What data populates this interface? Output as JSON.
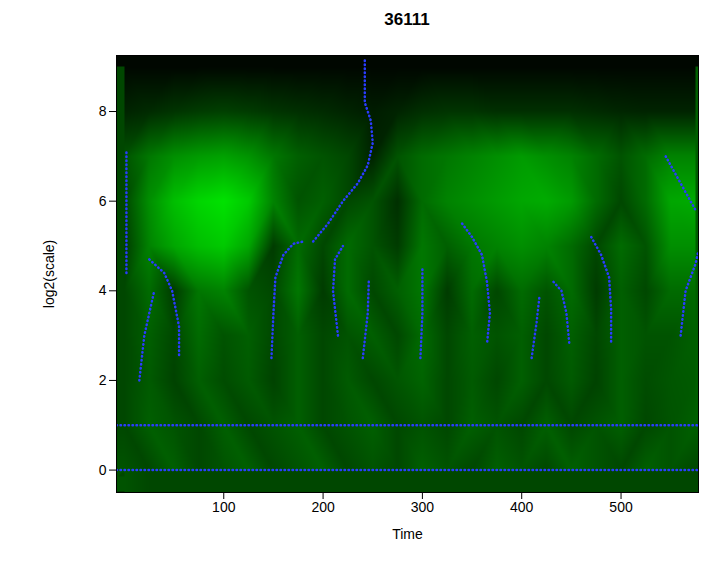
{
  "chart_data": {
    "type": "heatmap",
    "title": "36111",
    "x_label": "Time",
    "y_label": "log2(scale)",
    "xlim": [
      -8,
      578
    ],
    "ylim": [
      -0.5,
      9.25
    ],
    "xticks": [
      100,
      200,
      300,
      400,
      500
    ],
    "yticks": [
      0,
      2,
      4,
      6,
      8
    ],
    "grid": false,
    "heatmap": {
      "x": [
        0,
        25,
        50,
        75,
        100,
        125,
        150,
        175,
        200,
        225,
        250,
        275,
        300,
        325,
        350,
        375,
        400,
        425,
        450,
        475,
        500,
        525,
        550,
        575
      ],
      "y": [
        0,
        1,
        2,
        3,
        4,
        5,
        6,
        7,
        8,
        9
      ],
      "value_range": [
        0,
        1
      ],
      "cells": [
        [
          0.35,
          0.3,
          0.4,
          0.3,
          0.35,
          0.4,
          0.3,
          0.35,
          0.4,
          0.3,
          0.35,
          0.3,
          0.4,
          0.35,
          0.3,
          0.4,
          0.35,
          0.3,
          0.4,
          0.35,
          0.3,
          0.4,
          0.35,
          0.3
        ],
        [
          0.3,
          0.4,
          0.35,
          0.3,
          0.4,
          0.3,
          0.35,
          0.4,
          0.3,
          0.35,
          0.4,
          0.3,
          0.35,
          0.3,
          0.4,
          0.35,
          0.3,
          0.4,
          0.3,
          0.35,
          0.4,
          0.3,
          0.35,
          0.4
        ],
        [
          0.3,
          0.38,
          0.28,
          0.4,
          0.32,
          0.38,
          0.28,
          0.4,
          0.3,
          0.38,
          0.3,
          0.36,
          0.42,
          0.3,
          0.38,
          0.3,
          0.4,
          0.3,
          0.38,
          0.28,
          0.4,
          0.32,
          0.36,
          0.38
        ],
        [
          0.3,
          0.4,
          0.3,
          0.45,
          0.35,
          0.4,
          0.3,
          0.4,
          0.3,
          0.35,
          0.4,
          0.3,
          0.45,
          0.3,
          0.4,
          0.35,
          0.4,
          0.3,
          0.4,
          0.3,
          0.4,
          0.35,
          0.35,
          0.4
        ],
        [
          0.3,
          0.45,
          0.25,
          0.5,
          0.55,
          0.35,
          0.3,
          0.5,
          0.25,
          0.45,
          0.3,
          0.4,
          0.5,
          0.25,
          0.45,
          0.3,
          0.45,
          0.35,
          0.45,
          0.25,
          0.4,
          0.3,
          0.45,
          0.45
        ],
        [
          0.25,
          0.55,
          0.7,
          0.8,
          0.85,
          0.7,
          0.25,
          0.45,
          0.3,
          0.45,
          0.35,
          0.25,
          0.5,
          0.4,
          0.5,
          0.55,
          0.6,
          0.55,
          0.45,
          0.3,
          0.45,
          0.35,
          0.6,
          0.6
        ],
        [
          0.3,
          0.6,
          0.8,
          0.9,
          0.95,
          0.85,
          0.55,
          0.35,
          0.4,
          0.3,
          0.35,
          0.2,
          0.45,
          0.55,
          0.6,
          0.65,
          0.7,
          0.72,
          0.65,
          0.45,
          0.3,
          0.45,
          0.7,
          0.72
        ],
        [
          0.35,
          0.5,
          0.6,
          0.65,
          0.68,
          0.62,
          0.5,
          0.4,
          0.35,
          0.3,
          0.15,
          0.35,
          0.45,
          0.5,
          0.55,
          0.6,
          0.65,
          0.6,
          0.55,
          0.45,
          0.35,
          0.45,
          0.55,
          0.55
        ],
        [
          0.15,
          0.18,
          0.22,
          0.25,
          0.27,
          0.25,
          0.22,
          0.2,
          0.18,
          0.15,
          0.12,
          0.15,
          0.2,
          0.22,
          0.22,
          0.2,
          0.2,
          0.2,
          0.2,
          0.18,
          0.16,
          0.15,
          0.15,
          0.15
        ],
        [
          0.03,
          0.03,
          0.03,
          0.03,
          0.03,
          0.03,
          0.03,
          0.03,
          0.03,
          0.03,
          0.03,
          0.03,
          0.03,
          0.03,
          0.03,
          0.03,
          0.03,
          0.03,
          0.03,
          0.03,
          0.03,
          0.03,
          0.03,
          0.03
        ]
      ]
    },
    "ridges": [
      {
        "color": "#2a3cff",
        "line_style": "dotted",
        "x": [
          -8,
          578
        ],
        "y": [
          0,
          0
        ]
      },
      {
        "color": "#2a3cff",
        "line_style": "dotted",
        "x": [
          -8,
          578
        ],
        "y": [
          1,
          1
        ]
      },
      {
        "color": "#2a3cff",
        "line_style": "dotted",
        "x": [
          2,
          2
        ],
        "y": [
          4.4,
          7.1
        ]
      },
      {
        "color": "#2a3cff",
        "line_style": "dotted",
        "x": [
          190,
          205,
          220,
          235,
          245,
          250,
          248,
          242,
          242
        ],
        "y": [
          5.1,
          5.5,
          6.0,
          6.4,
          6.8,
          7.3,
          7.8,
          8.2,
          9.2
        ]
      },
      {
        "color": "#2a3cff",
        "line_style": "dotted",
        "x": [
          148,
          150,
          152,
          160,
          170,
          180
        ],
        "y": [
          2.5,
          3.5,
          4.3,
          4.8,
          5.05,
          5.1
        ]
      },
      {
        "color": "#2a3cff",
        "line_style": "dotted",
        "x": [
          215,
          210,
          212,
          220
        ],
        "y": [
          3,
          4,
          4.7,
          5.0
        ]
      },
      {
        "color": "#2a3cff",
        "line_style": "dotted",
        "x": [
          25,
          40,
          48,
          55,
          55
        ],
        "y": [
          4.7,
          4.4,
          4.0,
          3.2,
          2.5
        ]
      },
      {
        "color": "#2a3cff",
        "line_style": "dotted",
        "x": [
          15,
          20,
          30
        ],
        "y": [
          2,
          3,
          4.0
        ]
      },
      {
        "color": "#2a3cff",
        "line_style": "dotted",
        "x": [
          240,
          245,
          246
        ],
        "y": [
          2.5,
          3.5,
          4.2
        ]
      },
      {
        "color": "#2a3cff",
        "line_style": "dotted",
        "x": [
          298,
          300,
          300
        ],
        "y": [
          2.5,
          3.5,
          4.5
        ]
      },
      {
        "color": "#2a3cff",
        "line_style": "dotted",
        "x": [
          340,
          350,
          360,
          365,
          368,
          365
        ],
        "y": [
          5.5,
          5.2,
          4.8,
          4.2,
          3.5,
          2.8
        ]
      },
      {
        "color": "#2a3cff",
        "line_style": "dotted",
        "x": [
          410,
          415,
          418
        ],
        "y": [
          2.5,
          3.3,
          3.9
        ]
      },
      {
        "color": "#2a3cff",
        "line_style": "dotted",
        "x": [
          432,
          440,
          445,
          448
        ],
        "y": [
          4.2,
          4.0,
          3.5,
          2.8
        ]
      },
      {
        "color": "#2a3cff",
        "line_style": "dotted",
        "x": [
          470,
          480,
          488,
          490,
          490
        ],
        "y": [
          5.2,
          4.8,
          4.3,
          3.6,
          2.8
        ]
      },
      {
        "color": "#2a3cff",
        "line_style": "dotted",
        "x": [
          545,
          555,
          565,
          575
        ],
        "y": [
          7.0,
          6.6,
          6.2,
          5.8
        ]
      },
      {
        "color": "#2a3cff",
        "line_style": "dotted",
        "x": [
          560,
          565,
          575,
          578
        ],
        "y": [
          3.0,
          4.0,
          4.6,
          4.9
        ]
      }
    ]
  }
}
